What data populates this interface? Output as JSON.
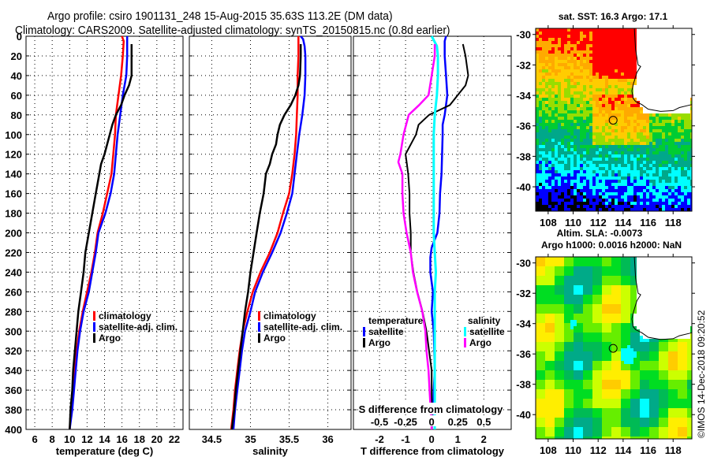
{
  "header": {
    "title_line1": "Argo profile: csiro 1901131_248 15-Aug-2015 35.63S 113.2E (DM data)",
    "title_line2": "Climatology: CARS2009. Satellite-adjusted climatology: synTS_20150815.nc (0.8d earlier)"
  },
  "colors": {
    "climatology": "#ff0000",
    "satellite_adj": "#0000ff",
    "argo": "#000000",
    "sal_satellite": "#00ffff",
    "sal_argo": "#ff00ff"
  },
  "chart_data": [
    {
      "id": "temperature",
      "type": "line",
      "xlabel": "temperature (deg C)",
      "ylabel": "depth",
      "xlim": [
        5,
        23
      ],
      "ylim": [
        0,
        400
      ],
      "y_inverted": true,
      "grid": true,
      "xticks": [
        6,
        8,
        10,
        12,
        14,
        16,
        18,
        20,
        22
      ],
      "yticks": [
        0,
        20,
        40,
        60,
        80,
        100,
        120,
        140,
        160,
        180,
        200,
        220,
        240,
        260,
        280,
        300,
        320,
        340,
        360,
        380,
        400
      ],
      "legend": [
        "climatology",
        "satellite-adj. clim.",
        "Argo"
      ],
      "legend_position": "lower-right",
      "series": [
        {
          "name": "climatology",
          "color": "#ff0000",
          "depth": [
            0,
            5,
            20,
            40,
            60,
            80,
            100,
            120,
            140,
            160,
            180,
            200,
            220,
            240,
            260,
            280,
            300,
            320,
            340,
            360,
            380,
            400
          ],
          "values": [
            16.0,
            16.2,
            16.1,
            15.9,
            15.6,
            15.3,
            15.2,
            15.0,
            14.8,
            14.3,
            13.8,
            13.2,
            12.9,
            12.5,
            12.0,
            11.5,
            11.1,
            10.8,
            10.6,
            10.4,
            10.2,
            10.0
          ]
        },
        {
          "name": "satellite-adj. clim.",
          "color": "#0000ff",
          "depth": [
            0,
            5,
            20,
            40,
            60,
            80,
            100,
            120,
            140,
            160,
            180,
            200,
            220,
            240,
            260,
            280,
            300,
            320,
            340,
            360,
            380,
            400
          ],
          "values": [
            16.6,
            16.6,
            16.6,
            16.5,
            16.1,
            15.8,
            15.5,
            15.3,
            15.1,
            14.7,
            14.1,
            13.3,
            13.0,
            12.6,
            12.2,
            11.6,
            11.2,
            10.9,
            10.7,
            10.5,
            10.3,
            10.0
          ]
        },
        {
          "name": "Argo",
          "color": "#000000",
          "depth": [
            8,
            20,
            40,
            50,
            60,
            70,
            80,
            90,
            100,
            120,
            130,
            140,
            160,
            180,
            200,
            220,
            240,
            260,
            280,
            300,
            320,
            340,
            360,
            380,
            400
          ],
          "values": [
            17.1,
            17.1,
            17.1,
            16.8,
            16.3,
            15.9,
            15.3,
            14.9,
            14.6,
            14.0,
            13.6,
            13.4,
            13.0,
            12.6,
            12.2,
            11.8,
            11.6,
            11.3,
            11.0,
            10.8,
            10.6,
            10.4,
            10.3,
            10.1,
            10.0
          ]
        }
      ]
    },
    {
      "id": "salinity",
      "type": "line",
      "xlabel": "salinity",
      "xlim": [
        34.21,
        36.3
      ],
      "ylim": [
        0,
        400
      ],
      "y_inverted": true,
      "grid": true,
      "xticks": [
        34.5,
        35,
        35.5,
        36
      ],
      "legend": [
        "climatology",
        "satellite-adj. clim.",
        "Argo"
      ],
      "legend_position": "lower-right",
      "series": [
        {
          "name": "climatology",
          "color": "#ff0000",
          "depth": [
            0,
            20,
            40,
            60,
            80,
            100,
            120,
            140,
            160,
            180,
            200,
            220,
            240,
            260,
            280,
            300,
            320,
            340,
            360,
            380,
            400
          ],
          "values": [
            35.62,
            35.62,
            35.61,
            35.61,
            35.6,
            35.59,
            35.57,
            35.54,
            35.5,
            35.42,
            35.35,
            35.25,
            35.13,
            35.03,
            34.96,
            34.9,
            34.86,
            34.83,
            34.8,
            34.78,
            34.75
          ]
        },
        {
          "name": "satellite-adj. clim.",
          "color": "#0000ff",
          "depth": [
            0,
            3,
            10,
            20,
            40,
            60,
            80,
            100,
            120,
            140,
            160,
            180,
            200,
            220,
            240,
            260,
            280,
            300,
            320,
            340,
            360,
            380,
            400
          ],
          "values": [
            35.65,
            35.68,
            35.7,
            35.71,
            35.71,
            35.7,
            35.67,
            35.63,
            35.6,
            35.57,
            35.54,
            35.47,
            35.39,
            35.28,
            35.16,
            35.06,
            35.0,
            34.93,
            34.89,
            34.86,
            34.83,
            34.8,
            34.78
          ]
        },
        {
          "name": "Argo",
          "color": "#000000",
          "depth": [
            8,
            20,
            40,
            50,
            60,
            70,
            80,
            90,
            100,
            110,
            120,
            130,
            140,
            160,
            180,
            200,
            220,
            240,
            260,
            280,
            300,
            320,
            340,
            360,
            380,
            400
          ],
          "values": [
            35.65,
            35.65,
            35.64,
            35.62,
            35.58,
            35.52,
            35.44,
            35.38,
            35.35,
            35.33,
            35.28,
            35.25,
            35.2,
            35.17,
            35.12,
            35.08,
            35.04,
            35.0,
            34.97,
            34.93,
            34.9,
            34.87,
            34.84,
            34.81,
            34.79,
            34.76
          ]
        }
      ]
    },
    {
      "id": "difference",
      "type": "line",
      "xlabel": "T difference from climatology",
      "xlabel2": "S difference from climatology",
      "xlim": [
        -3,
        3.05
      ],
      "xlim_S": [
        -0.75,
        0.7625
      ],
      "ylim": [
        0,
        400
      ],
      "y_inverted": true,
      "grid": true,
      "xticks": [
        -2,
        -1,
        0,
        1,
        2
      ],
      "xticks_S": [
        -0.5,
        -0.25,
        0,
        0.25,
        0.5
      ],
      "legend_temperature_title": "temperature",
      "legend_salinity_title": "salinity",
      "legend": [
        "satellite",
        "Argo",
        "satellite",
        "Argo"
      ],
      "series": [
        {
          "name": "T satellite",
          "axis": "T",
          "color": "#0000ff",
          "depth": [
            0,
            5,
            20,
            40,
            60,
            80,
            90,
            100,
            120,
            140,
            160,
            180,
            200,
            215,
            225,
            240,
            260,
            280,
            300,
            320,
            340,
            360,
            380,
            400
          ],
          "values": [
            0.55,
            0.5,
            0.5,
            0.55,
            0.6,
            0.5,
            0.42,
            0.42,
            0.4,
            0.38,
            0.32,
            0.3,
            0.22,
            0.0,
            -0.05,
            -0.05,
            0.05,
            0.0,
            0.08,
            0.1,
            0.12,
            0.08,
            0.05,
            0.0
          ]
        },
        {
          "name": "T Argo",
          "axis": "T",
          "color": "#000000",
          "depth": [
            8,
            20,
            40,
            50,
            60,
            70,
            75,
            80,
            90,
            100,
            120,
            130,
            140,
            160,
            180,
            200,
            220,
            240,
            260,
            280,
            300,
            320,
            340,
            360,
            380,
            400
          ],
          "values": [
            1.2,
            1.3,
            1.4,
            1.3,
            1.0,
            0.7,
            0.3,
            -0.1,
            -0.5,
            -0.6,
            -1.0,
            -0.95,
            -0.9,
            -0.85,
            -0.85,
            -0.8,
            -0.8,
            -0.7,
            -0.55,
            -0.35,
            -0.2,
            -0.1,
            0.0,
            0.0,
            0.0,
            0.0
          ]
        },
        {
          "name": "S satellite",
          "axis": "S",
          "color": "#00ffff",
          "depth": [
            0,
            10,
            20,
            40,
            60,
            80,
            100,
            120,
            140,
            160,
            180,
            200,
            220,
            240,
            260,
            280,
            300,
            320,
            340,
            360,
            380,
            400
          ],
          "values": [
            0.0,
            0.05,
            0.06,
            0.06,
            0.05,
            0.03,
            0.02,
            0.02,
            0.02,
            0.02,
            0.02,
            0.02,
            0.03,
            0.04,
            0.03,
            0.03,
            0.03,
            0.03,
            0.03,
            0.03,
            0.03,
            0.03
          ]
        },
        {
          "name": "S Argo",
          "axis": "S",
          "color": "#ff00ff",
          "depth": [
            8,
            20,
            40,
            60,
            70,
            80,
            100,
            120,
            128,
            140,
            160,
            180,
            200,
            220,
            240,
            260,
            280,
            300,
            320,
            340,
            360,
            380,
            400
          ],
          "values": [
            0.03,
            0.03,
            0.0,
            -0.03,
            -0.12,
            -0.22,
            -0.27,
            -0.3,
            -0.32,
            -0.28,
            -0.28,
            -0.27,
            -0.24,
            -0.2,
            -0.18,
            -0.14,
            -0.09,
            -0.06,
            -0.05,
            -0.03,
            -0.02,
            -0.01,
            0.0
          ]
        }
      ]
    },
    {
      "id": "sst-map",
      "type": "heatmap",
      "title": "sat. SST: 16.3 Argo: 17.1",
      "xlim": [
        107,
        119.5
      ],
      "ylim": [
        -41.6,
        -29.6
      ],
      "xticks": [
        108,
        110,
        112,
        114,
        116,
        118
      ],
      "yticks": [
        -30,
        -32,
        -34,
        -36,
        -38,
        -40
      ],
      "argo_position": {
        "lon": 113.2,
        "lat": -35.63
      }
    },
    {
      "id": "sla-map",
      "type": "heatmap",
      "title_line1": "Altim. SLA: -0.0073",
      "title_line2": "Argo h1000: 0.0016 h2000: NaN",
      "xlim": [
        107,
        119.5
      ],
      "ylim": [
        -41.6,
        -29.6
      ],
      "xticks": [
        108,
        110,
        112,
        114,
        116,
        118
      ],
      "yticks": [
        -30,
        -32,
        -34,
        -36,
        -38,
        -40
      ],
      "argo_position": {
        "lon": 113.2,
        "lat": -35.63
      }
    }
  ],
  "credit": "©IMOS 14-Dec-2018 09:20:52"
}
